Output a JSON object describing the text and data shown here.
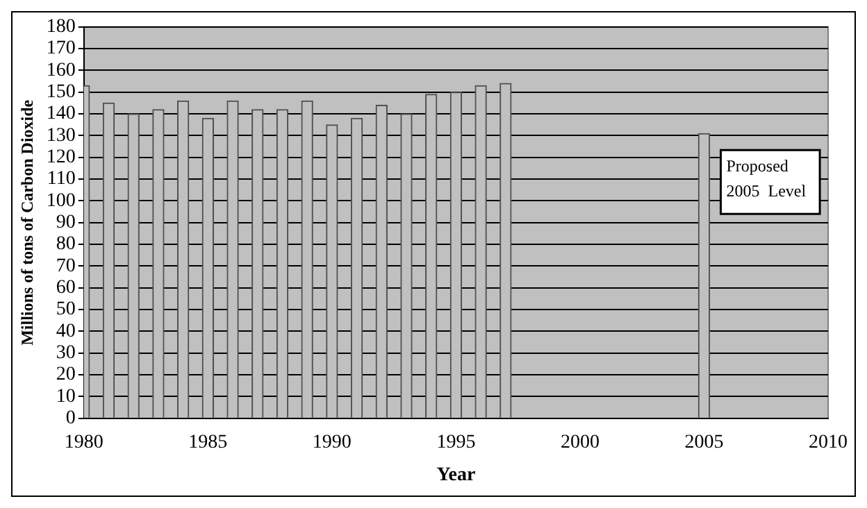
{
  "chart_data": {
    "type": "bar",
    "xlabel": "Year",
    "ylabel": "Millions of tons of Carbon Dioxide",
    "x": [
      1980,
      1981,
      1982,
      1983,
      1984,
      1985,
      1986,
      1987,
      1988,
      1989,
      1990,
      1991,
      1992,
      1993,
      1994,
      1995,
      1996,
      1997,
      2005
    ],
    "values": [
      153,
      145,
      140,
      142,
      146,
      138,
      146,
      142,
      142,
      146,
      135,
      138,
      144,
      140,
      149,
      150,
      153,
      154,
      131
    ],
    "color": "#c0c0c0",
    "xlim": [
      1980,
      2010
    ],
    "xticks": [
      1980,
      1985,
      1990,
      1995,
      2000,
      2005,
      2010
    ],
    "ylim": [
      0,
      180
    ],
    "yticks": [
      0,
      10,
      20,
      30,
      40,
      50,
      60,
      70,
      80,
      90,
      100,
      110,
      120,
      130,
      140,
      150,
      160,
      170,
      180
    ],
    "grid": "y",
    "legend": false,
    "annotations": [
      {
        "text": "Proposed\n2005  Level",
        "x": 2005,
        "y": 131
      }
    ]
  }
}
